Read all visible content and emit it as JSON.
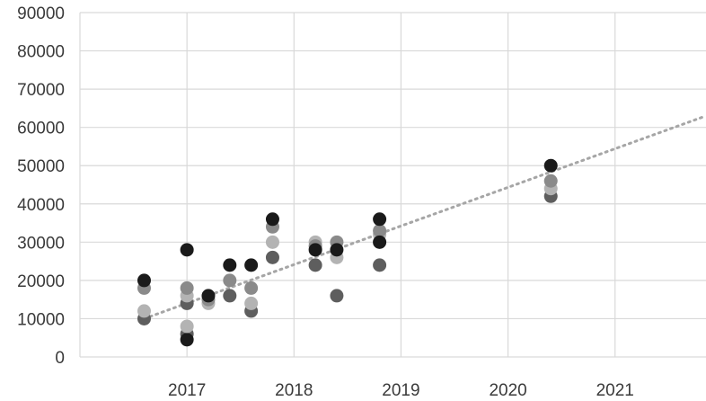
{
  "chart_data": {
    "type": "scatter",
    "title": "",
    "xlabel": "",
    "ylabel": "",
    "xlim": [
      2016,
      2021.85
    ],
    "ylim": [
      0,
      90000
    ],
    "grid": true,
    "legend": "none",
    "x_ticks": [
      2017,
      2018,
      2019,
      2020,
      2021
    ],
    "x_tick_labels": [
      "2017",
      "2018",
      "2019",
      "2020",
      "2021"
    ],
    "y_ticks": [
      0,
      10000,
      20000,
      30000,
      40000,
      50000,
      60000,
      70000,
      80000,
      90000
    ],
    "y_tick_labels": [
      "0",
      "10000",
      "20000",
      "30000",
      "40000",
      "50000",
      "60000",
      "70000",
      "80000",
      "90000"
    ],
    "series": [
      {
        "color": "#5e5e5e",
        "points": [
          [
            2016.6,
            10000
          ],
          [
            2017.0,
            14000
          ],
          [
            2017.0,
            6000
          ],
          [
            2017.4,
            16000
          ],
          [
            2017.6,
            12000
          ],
          [
            2017.8,
            26000
          ],
          [
            2018.2,
            24000
          ],
          [
            2018.4,
            16000
          ],
          [
            2018.8,
            24000
          ],
          [
            2020.4,
            42000
          ]
        ]
      },
      {
        "color": "#b3b3b3",
        "points": [
          [
            2016.6,
            12000
          ],
          [
            2017.0,
            16000
          ],
          [
            2017.0,
            8000
          ],
          [
            2017.2,
            14000
          ],
          [
            2017.6,
            14000
          ],
          [
            2017.8,
            30000
          ],
          [
            2018.2,
            30000
          ],
          [
            2018.4,
            26000
          ],
          [
            2018.8,
            32000
          ],
          [
            2020.4,
            44000
          ]
        ]
      },
      {
        "color": "#8a8a8a",
        "points": [
          [
            2016.6,
            18000
          ],
          [
            2017.0,
            18000
          ],
          [
            2017.2,
            15000
          ],
          [
            2017.4,
            20000
          ],
          [
            2017.6,
            18000
          ],
          [
            2017.8,
            34000
          ],
          [
            2018.2,
            29000
          ],
          [
            2018.4,
            30000
          ],
          [
            2018.8,
            33000
          ],
          [
            2020.4,
            46000
          ]
        ]
      },
      {
        "color": "#1a1a1a",
        "points": [
          [
            2016.6,
            20000
          ],
          [
            2017.0,
            28000
          ],
          [
            2017.0,
            4500
          ],
          [
            2017.2,
            16000
          ],
          [
            2017.4,
            24000
          ],
          [
            2017.6,
            24000
          ],
          [
            2017.8,
            36000
          ],
          [
            2018.2,
            28000
          ],
          [
            2018.4,
            28000
          ],
          [
            2018.8,
            36000
          ],
          [
            2018.8,
            30000
          ],
          [
            2020.4,
            50000
          ]
        ]
      }
    ],
    "trendline": {
      "style": "dotted",
      "color": "#a6a6a6",
      "points": [
        [
          2016.6,
          10000
        ],
        [
          2021.85,
          63000
        ]
      ]
    }
  }
}
